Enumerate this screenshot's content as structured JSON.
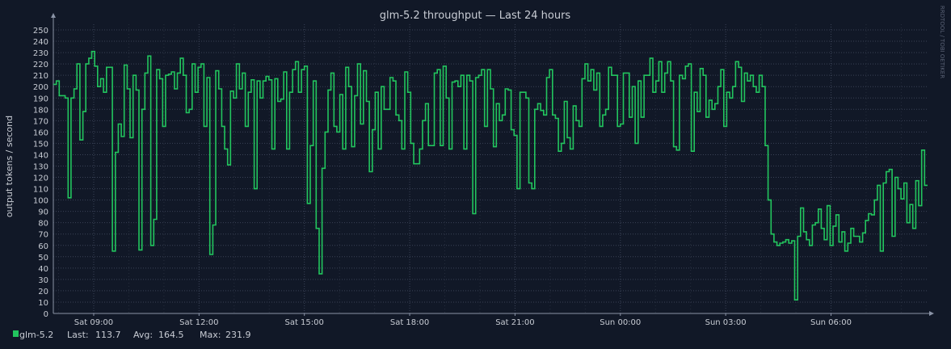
{
  "chart_data": {
    "type": "line",
    "title": "glm-5.2 throughput — Last 24 hours",
    "ylabel": "output tokens / second",
    "watermark": "RRDTOOL / TOBI OETIKER",
    "ylim": [
      0,
      255
    ],
    "y_ticks": [
      0,
      10,
      20,
      30,
      40,
      50,
      60,
      70,
      80,
      90,
      100,
      110,
      120,
      130,
      140,
      150,
      160,
      170,
      180,
      190,
      200,
      210,
      220,
      230,
      240,
      250
    ],
    "x_range_hours": [
      -1.15,
      23.75
    ],
    "x_ticks": [
      {
        "hour": 0,
        "label": "Sat 09:00"
      },
      {
        "hour": 3,
        "label": "Sat 12:00"
      },
      {
        "hour": 6,
        "label": "Sat 15:00"
      },
      {
        "hour": 9,
        "label": "Sat 18:00"
      },
      {
        "hour": 12,
        "label": "Sat 21:00"
      },
      {
        "hour": 15,
        "label": "Sun 00:00"
      },
      {
        "hour": 18,
        "label": "Sun 03:00"
      },
      {
        "hour": 21,
        "label": "Sun 06:00"
      }
    ],
    "grid": true,
    "colors": {
      "background": "#111827",
      "plot_background": "#111827",
      "grid_major": "#3a4256",
      "grid_minor": "#262d3d",
      "axis": "#8a93a6",
      "series": "#22c55e",
      "text": "#c8ccd4"
    },
    "series": [
      {
        "name": "glm-5.2",
        "values": [
          202,
          205,
          192,
          192,
          190,
          102,
          190,
          198,
          220,
          153,
          178,
          220,
          225,
          231,
          218,
          200,
          207,
          195,
          217,
          217,
          55,
          142,
          167,
          156,
          219,
          198,
          155,
          210,
          197,
          56,
          180,
          212,
          227,
          60,
          83,
          215,
          207,
          165,
          210,
          211,
          213,
          198,
          212,
          225,
          210,
          177,
          180,
          220,
          195,
          217,
          220,
          165,
          208,
          52,
          78,
          214,
          198,
          165,
          145,
          131,
          196,
          190,
          220,
          198,
          212,
          165,
          195,
          206,
          110,
          205,
          190,
          205,
          209,
          206,
          145,
          207,
          187,
          189,
          213,
          145,
          195,
          215,
          222,
          195,
          215,
          218,
          97,
          148,
          205,
          75,
          35,
          128,
          160,
          197,
          212,
          165,
          160,
          193,
          145,
          217,
          200,
          147,
          192,
          220,
          167,
          214,
          187,
          125,
          162,
          195,
          145,
          200,
          180,
          180,
          208,
          205,
          175,
          170,
          145,
          213,
          195,
          150,
          132,
          132,
          145,
          170,
          185,
          148,
          148,
          212,
          215,
          148,
          218,
          190,
          145,
          204,
          205,
          200,
          210,
          145,
          210,
          205,
          88,
          208,
          210,
          215,
          165,
          215,
          198,
          147,
          185,
          170,
          175,
          198,
          197,
          162,
          157,
          110,
          195,
          195,
          190,
          115,
          110,
          180,
          185,
          179,
          175,
          208,
          215,
          175,
          172,
          143,
          150,
          187,
          155,
          145,
          183,
          170,
          165,
          207,
          220,
          205,
          215,
          197,
          212,
          165,
          175,
          180,
          217,
          210,
          210,
          165,
          167,
          212,
          212,
          173,
          200,
          150,
          205,
          173,
          210,
          210,
          225,
          195,
          205,
          222,
          195,
          212,
          222,
          205,
          147,
          144,
          210,
          207,
          218,
          220,
          143,
          195,
          178,
          216,
          210,
          173,
          188,
          180,
          185,
          200,
          215,
          165,
          195,
          190,
          200,
          222,
          217,
          187,
          212,
          205,
          210,
          200,
          195,
          210,
          200,
          148,
          100,
          70,
          63,
          60,
          62,
          63,
          65,
          62,
          64,
          12,
          68,
          93,
          72,
          65,
          60,
          78,
          80,
          92,
          75,
          65,
          95,
          60,
          77,
          87,
          63,
          72,
          55,
          62,
          75,
          68,
          68,
          63,
          71,
          82,
          88,
          87,
          100,
          113,
          55,
          115,
          125,
          127,
          68,
          120,
          110,
          101,
          115,
          80,
          96,
          75,
          117,
          95,
          144,
          113
        ]
      }
    ],
    "legend": {
      "placement": "bottom-left",
      "series_name": "glm-5.2",
      "last_label": "Last:",
      "last_value": "113.7",
      "avg_label": "Avg:",
      "avg_value": "164.5",
      "max_label": "Max:",
      "max_value": "231.9"
    }
  }
}
